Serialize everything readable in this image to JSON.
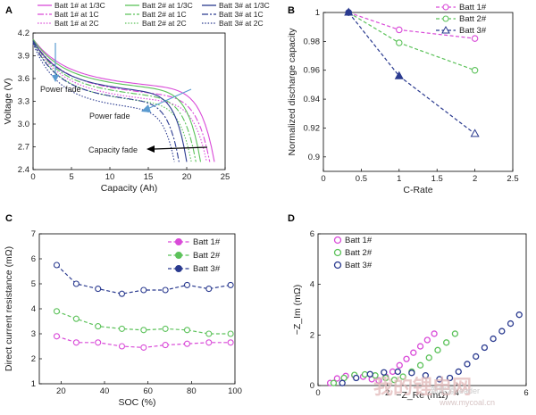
{
  "chart_data": [
    {
      "id": "A",
      "panel_label": "A",
      "type": "line",
      "xlabel": "Capacity (Ah)",
      "ylabel": "Voltage (V)",
      "xlim": [
        0,
        25
      ],
      "ylim": [
        2.4,
        4.2
      ],
      "xticks": [
        "0",
        "5",
        "10",
        "15",
        "20",
        "25"
      ],
      "yticks": [
        "2.4",
        "2.7",
        "3.0",
        "3.3",
        "3.6",
        "3.9",
        "4.2"
      ],
      "legend_position": "top",
      "series": [
        {
          "name": "Batt 1# at 1/3C",
          "color": "#d94ad8",
          "dash": "solid",
          "v0": 4.12,
          "v_plateau": 3.62,
          "capacity": 23.6
        },
        {
          "name": "Batt 1# at 1C",
          "color": "#d94ad8",
          "dash": "dashdot",
          "v0": 4.1,
          "v_plateau": 3.52,
          "capacity": 23.0
        },
        {
          "name": "Batt 1# at 2C",
          "color": "#d94ad8",
          "dash": "dot",
          "v0": 4.08,
          "v_plateau": 3.44,
          "capacity": 22.6
        },
        {
          "name": "Batt 2# at 1/3C",
          "color": "#5cc25a",
          "dash": "solid",
          "v0": 4.12,
          "v_plateau": 3.6,
          "capacity": 21.8
        },
        {
          "name": "Batt 2# at 1C",
          "color": "#5cc25a",
          "dash": "dashdot",
          "v0": 4.1,
          "v_plateau": 3.5,
          "capacity": 21.2
        },
        {
          "name": "Batt 2# at 2C",
          "color": "#5cc25a",
          "dash": "dot",
          "v0": 4.08,
          "v_plateau": 3.42,
          "capacity": 20.6
        },
        {
          "name": "Batt 3# at 1/3C",
          "color": "#2a3a8f",
          "dash": "solid",
          "v0": 4.1,
          "v_plateau": 3.56,
          "capacity": 20.0
        },
        {
          "name": "Batt 3# at 1C",
          "color": "#2a3a8f",
          "dash": "dashdot",
          "v0": 4.08,
          "v_plateau": 3.44,
          "capacity": 19.0
        },
        {
          "name": "Batt 3# at 2C",
          "color": "#2a3a8f",
          "dash": "dot",
          "v0": 4.06,
          "v_plateau": 3.34,
          "capacity": 18.4
        }
      ],
      "annotations": [
        "Power fade",
        "Power fade",
        "Capacity fade"
      ]
    },
    {
      "id": "B",
      "panel_label": "B",
      "type": "line",
      "xlabel": "C-Rate",
      "ylabel": "Normalized discharge capacity",
      "xlim": [
        0,
        2.5
      ],
      "ylim": [
        0.89,
        1.0
      ],
      "xticks": [
        "0",
        "0.5",
        "1",
        "1.5",
        "2",
        "2.5"
      ],
      "yticks": [
        "0.9",
        "0.92",
        "0.94",
        "0.96",
        "0.98",
        "1"
      ],
      "legend_position": "top-right",
      "x": [
        0.333,
        1,
        2
      ],
      "series": [
        {
          "name": "Batt 1#",
          "color": "#d94ad8",
          "marker": "circle",
          "values": [
            1.0,
            0.988,
            0.982
          ]
        },
        {
          "name": "Batt 2#",
          "color": "#5cc25a",
          "marker": "circle",
          "values": [
            1.0,
            0.979,
            0.96
          ]
        },
        {
          "name": "Batt 3#",
          "color": "#2a3a8f",
          "marker": "triangle",
          "values": [
            1.0,
            0.956,
            0.916
          ]
        }
      ]
    },
    {
      "id": "C",
      "panel_label": "C",
      "type": "line",
      "xlabel": "SOC (%)",
      "ylabel": "Direct current resistance (mΩ)",
      "xlim": [
        10,
        100
      ],
      "ylim": [
        1,
        7
      ],
      "xticks": [
        "20",
        "40",
        "60",
        "80",
        "100"
      ],
      "yticks": [
        "1",
        "2",
        "3",
        "4",
        "5",
        "6",
        "7"
      ],
      "legend_position": "top-right",
      "x": [
        18,
        27,
        37,
        48,
        58,
        68,
        78,
        88,
        98
      ],
      "series": [
        {
          "name": "Batt 1#",
          "color": "#d94ad8",
          "values": [
            2.9,
            2.65,
            2.65,
            2.5,
            2.45,
            2.55,
            2.6,
            2.65,
            2.65
          ]
        },
        {
          "name": "Batt 2#",
          "color": "#5cc25a",
          "values": [
            3.9,
            3.6,
            3.3,
            3.2,
            3.15,
            3.2,
            3.15,
            3.0,
            3.0
          ]
        },
        {
          "name": "Batt 3#",
          "color": "#2a3a8f",
          "values": [
            5.75,
            5.0,
            4.8,
            4.6,
            4.75,
            4.75,
            4.95,
            4.8,
            4.95
          ]
        }
      ]
    },
    {
      "id": "D",
      "panel_label": "D",
      "type": "scatter",
      "xlabel": "−Z_Re (mΩ)",
      "ylabel": "−Z_Im (mΩ)",
      "xlim": [
        0,
        6
      ],
      "ylim": [
        0,
        6
      ],
      "xticks": [
        "0",
        "2",
        "4",
        "6"
      ],
      "yticks": [
        "0",
        "2",
        "4",
        "6"
      ],
      "legend_position": "top-left",
      "series": [
        {
          "name": "Batt 1#",
          "color": "#d94ad8",
          "x": [
            0.35,
            0.55,
            0.8,
            1.05,
            1.3,
            1.55,
            1.75,
            1.95,
            2.15,
            2.35,
            2.55,
            2.75,
            2.95,
            3.15,
            3.35
          ],
          "y": [
            0.1,
            0.28,
            0.38,
            0.4,
            0.35,
            0.25,
            0.2,
            0.35,
            0.55,
            0.8,
            1.05,
            1.3,
            1.55,
            1.8,
            2.05
          ]
        },
        {
          "name": "Batt 2#",
          "color": "#5cc25a",
          "x": [
            0.45,
            0.75,
            1.05,
            1.35,
            1.65,
            1.95,
            2.2,
            2.45,
            2.7,
            2.95,
            3.2,
            3.45,
            3.7,
            3.95
          ],
          "y": [
            0.1,
            0.3,
            0.42,
            0.44,
            0.4,
            0.3,
            0.22,
            0.35,
            0.55,
            0.8,
            1.1,
            1.4,
            1.7,
            2.05
          ]
        },
        {
          "name": "Batt 3#",
          "color": "#2a3a8f",
          "x": [
            0.7,
            1.1,
            1.5,
            1.9,
            2.3,
            2.7,
            3.1,
            3.5,
            3.8,
            4.05,
            4.3,
            4.55,
            4.8,
            5.05,
            5.3,
            5.55,
            5.8
          ],
          "y": [
            0.1,
            0.3,
            0.45,
            0.52,
            0.55,
            0.5,
            0.4,
            0.25,
            0.3,
            0.55,
            0.85,
            1.15,
            1.5,
            1.85,
            2.15,
            2.45,
            2.8
          ]
        }
      ]
    }
  ],
  "watermark": {
    "text_cn": "我的锂电网",
    "text_site": "新能源Leader",
    "text_url": "www.mycoal.cn"
  }
}
